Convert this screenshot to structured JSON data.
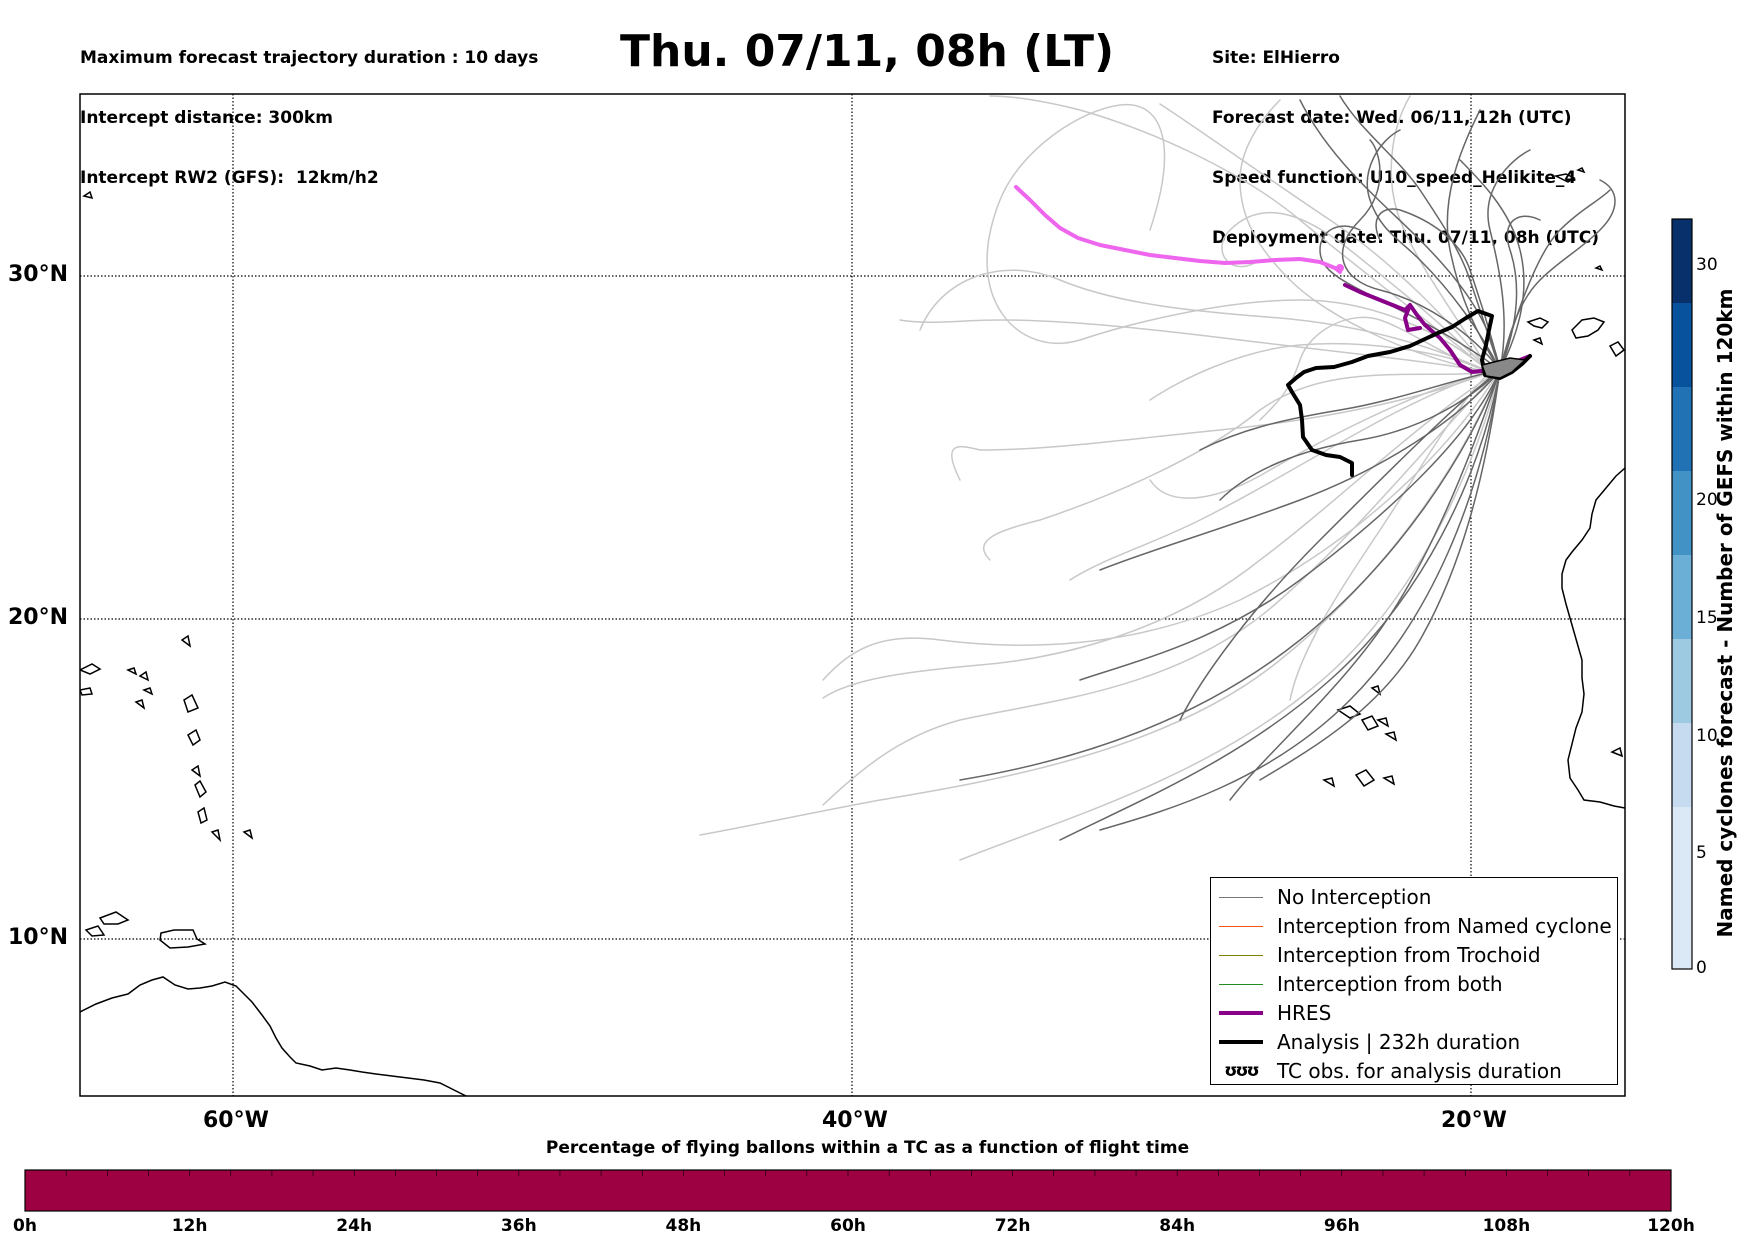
{
  "header": {
    "left_lines": [
      "Maximum forecast trajectory duration : 10 days",
      "Intercept distance: 300km",
      "Intercept RW2 (GFS):  12km/h2"
    ],
    "title": "Thu. 07/11, 08h (LT)",
    "right_lines": [
      "Site: ElHierro",
      "Forecast date: Wed. 06/11, 12h (UTC)",
      "Speed function: U10_speed_Helikite_4",
      "Deployment date: Thu. 07/11, 08h (UTC)"
    ]
  },
  "map": {
    "lat_labels": [
      "30°N",
      "20°N",
      "10°N"
    ],
    "lon_labels": [
      "60°W",
      "40°W",
      "20°W"
    ],
    "colors": {
      "no_interception": "#777777",
      "named_cyclone": "#ff5511",
      "trochoid": "#808000",
      "both": "#228B22",
      "hres": "#880088",
      "hres_light": "#ee66ee",
      "analysis": "#000000"
    }
  },
  "legend": {
    "items": [
      {
        "label": "No Interception",
        "color": "#777777",
        "kind": "thin"
      },
      {
        "label": "Interception from Named cyclone",
        "color": "#ff5511",
        "kind": "thin"
      },
      {
        "label": "Interception from Trochoid",
        "color": "#808000",
        "kind": "thin"
      },
      {
        "label": "Interception from both",
        "color": "#228B22",
        "kind": "thin"
      },
      {
        "label": "HRES",
        "color": "#880088",
        "kind": "thick"
      },
      {
        "label": "Analysis | 232h duration",
        "color": "#000000",
        "kind": "thick"
      },
      {
        "label": "TC obs. for analysis duration",
        "color": "#000000",
        "kind": "symbol",
        "symbol": "ʊʊʊ"
      }
    ]
  },
  "colorbar": {
    "title": "Named cyclones forecast - Number of GEFS within 120km",
    "ticks": [
      "0",
      "5",
      "10",
      "15",
      "20",
      "30"
    ],
    "colors": [
      "#dbe9f6",
      "#c6dbef",
      "#9ecae1",
      "#6baed6",
      "#4292c6",
      "#2171b5",
      "#08519c",
      "#08306b"
    ]
  },
  "time_bar": {
    "caption": "Percentage of flying ballons within a TC as a function of flight time",
    "fill_color": "#9e0142",
    "percentages": [
      0,
      0,
      0,
      0,
      0,
      0,
      0,
      0,
      0,
      0,
      0,
      0,
      0,
      0,
      0,
      0,
      0,
      0,
      0,
      0,
      0,
      0,
      0,
      0,
      0,
      0,
      0,
      0,
      0,
      0,
      0,
      0,
      0,
      0,
      0,
      0,
      0,
      0,
      0,
      0
    ],
    "labels": [
      "0h",
      "12h",
      "24h",
      "36h",
      "48h",
      "60h",
      "72h",
      "84h",
      "96h",
      "108h",
      "120h"
    ]
  }
}
